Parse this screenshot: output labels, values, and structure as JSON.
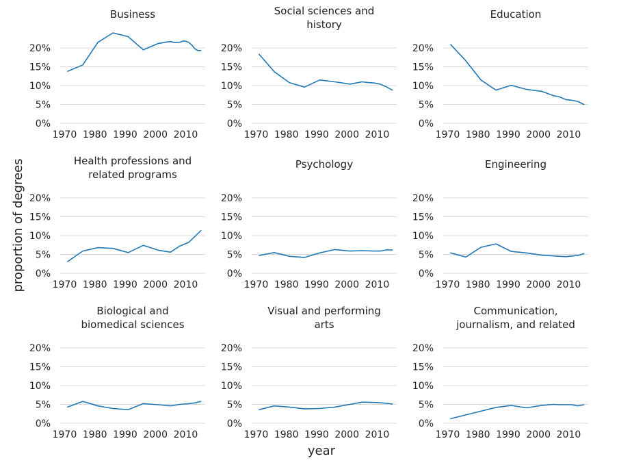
{
  "chart_data": {
    "type": "line",
    "xlabel": "year",
    "ylabel": "proportion of degrees",
    "x_ticks": [
      1970,
      1980,
      1990,
      2000,
      2010
    ],
    "y_ticks": [
      0,
      5,
      10,
      15,
      20
    ],
    "y_tick_labels": [
      "0%",
      "5%",
      "10%",
      "15%",
      "20%"
    ],
    "xlim": [
      1969,
      2016
    ],
    "ylim": [
      0,
      20
    ],
    "grid": "horizontal",
    "line_color": "#1f77b4",
    "panels": [
      {
        "title_lines": [
          "Business"
        ],
        "x": [
          1971,
          1976,
          1981,
          1986,
          1991,
          1996,
          2001,
          2004,
          2005,
          2006,
          2007,
          2008,
          2009,
          2010,
          2011,
          2012,
          2013,
          2014,
          2015
        ],
        "values": [
          13.8,
          15.5,
          21.5,
          24.0,
          23.0,
          19.5,
          21.2,
          21.6,
          21.7,
          21.5,
          21.5,
          21.5,
          21.8,
          21.8,
          21.5,
          20.8,
          19.8,
          19.3,
          19.3
        ]
      },
      {
        "title_lines": [
          "Social sciences and",
          "history"
        ],
        "x": [
          1971,
          1976,
          1981,
          1986,
          1991,
          1996,
          2001,
          2005,
          2007,
          2009,
          2011,
          2013,
          2015
        ],
        "values": [
          18.3,
          13.7,
          10.8,
          9.6,
          11.5,
          11.0,
          10.4,
          11.0,
          10.8,
          10.7,
          10.4,
          9.7,
          8.8
        ]
      },
      {
        "title_lines": [
          "Education"
        ],
        "x": [
          1971,
          1976,
          1981,
          1986,
          1991,
          1996,
          2001,
          2005,
          2007,
          2009,
          2011,
          2013,
          2015
        ],
        "values": [
          20.9,
          16.6,
          11.5,
          8.8,
          10.1,
          9.0,
          8.5,
          7.3,
          7.0,
          6.3,
          6.1,
          5.8,
          5.0
        ]
      },
      {
        "title_lines": [
          "Health professions and",
          "related programs"
        ],
        "x": [
          1971,
          1976,
          1981,
          1986,
          1991,
          1996,
          2001,
          2005,
          2008,
          2011,
          2015
        ],
        "values": [
          3.1,
          5.9,
          6.8,
          6.6,
          5.5,
          7.4,
          6.1,
          5.6,
          7.2,
          8.2,
          11.3
        ]
      },
      {
        "title_lines": [
          "Psychology"
        ],
        "x": [
          1971,
          1976,
          1981,
          1986,
          1991,
          1996,
          2001,
          2005,
          2009,
          2011,
          2013,
          2015
        ],
        "values": [
          4.7,
          5.5,
          4.5,
          4.2,
          5.4,
          6.3,
          5.9,
          6.0,
          5.9,
          5.9,
          6.2,
          6.2
        ]
      },
      {
        "title_lines": [
          "Engineering"
        ],
        "x": [
          1971,
          1976,
          1981,
          1986,
          1991,
          1996,
          2001,
          2005,
          2009,
          2013,
          2015
        ],
        "values": [
          5.4,
          4.3,
          6.9,
          7.8,
          5.8,
          5.4,
          4.8,
          4.6,
          4.4,
          4.7,
          5.2
        ]
      },
      {
        "title_lines": [
          "Biological and",
          "biomedical sciences"
        ],
        "x": [
          1971,
          1976,
          1981,
          1986,
          1991,
          1996,
          2001,
          2005,
          2008,
          2011,
          2013,
          2015
        ],
        "values": [
          4.3,
          5.8,
          4.6,
          3.9,
          3.6,
          5.2,
          4.9,
          4.6,
          5.0,
          5.2,
          5.4,
          5.8
        ]
      },
      {
        "title_lines": [
          "Visual and performing",
          "arts"
        ],
        "x": [
          1971,
          1976,
          1981,
          1986,
          1991,
          1996,
          2001,
          2005,
          2010,
          2013,
          2015
        ],
        "values": [
          3.6,
          4.6,
          4.3,
          3.8,
          3.9,
          4.3,
          5.0,
          5.6,
          5.5,
          5.3,
          5.1
        ]
      },
      {
        "title_lines": [
          "Communication,",
          "journalism, and related"
        ],
        "x": [
          1971,
          1976,
          1981,
          1986,
          1991,
          1996,
          2001,
          2005,
          2007,
          2011,
          2013,
          2015
        ],
        "values": [
          1.2,
          2.2,
          3.2,
          4.2,
          4.7,
          4.1,
          4.7,
          5.0,
          4.9,
          4.9,
          4.6,
          4.9
        ]
      }
    ]
  }
}
